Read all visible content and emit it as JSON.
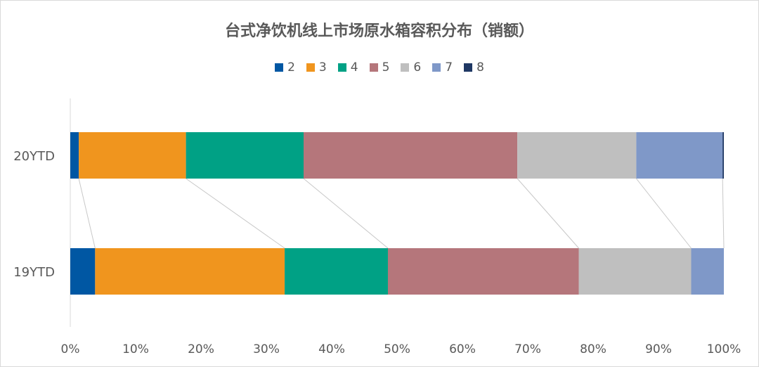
{
  "chart_data": {
    "type": "bar",
    "orientation": "horizontal",
    "stacked": "percent",
    "title": "台式净饮机线上市场原水箱容积分布（销额）",
    "categories": [
      "20YTD",
      "19YTD"
    ],
    "series": [
      {
        "name": "2",
        "color": "#0057a3",
        "values": [
          1.3,
          3.8
        ]
      },
      {
        "name": "3",
        "color": "#f0951e",
        "values": [
          16.4,
          29.0
        ]
      },
      {
        "name": "4",
        "color": "#00a185",
        "values": [
          18.0,
          15.8
        ]
      },
      {
        "name": "5",
        "color": "#b5767b",
        "values": [
          32.7,
          29.2
        ]
      },
      {
        "name": "6",
        "color": "#bfbfbf",
        "values": [
          18.2,
          17.2
        ]
      },
      {
        "name": "7",
        "color": "#7f98c8",
        "values": [
          13.2,
          5.0
        ]
      },
      {
        "name": "8",
        "color": "#1f3864",
        "values": [
          0.2,
          0.0
        ]
      }
    ],
    "x_ticks": [
      "0%",
      "10%",
      "20%",
      "30%",
      "40%",
      "50%",
      "60%",
      "70%",
      "80%",
      "90%",
      "100%"
    ],
    "xlim": [
      0,
      100
    ],
    "series_lines": true,
    "grid": false,
    "legend_position": "top"
  }
}
